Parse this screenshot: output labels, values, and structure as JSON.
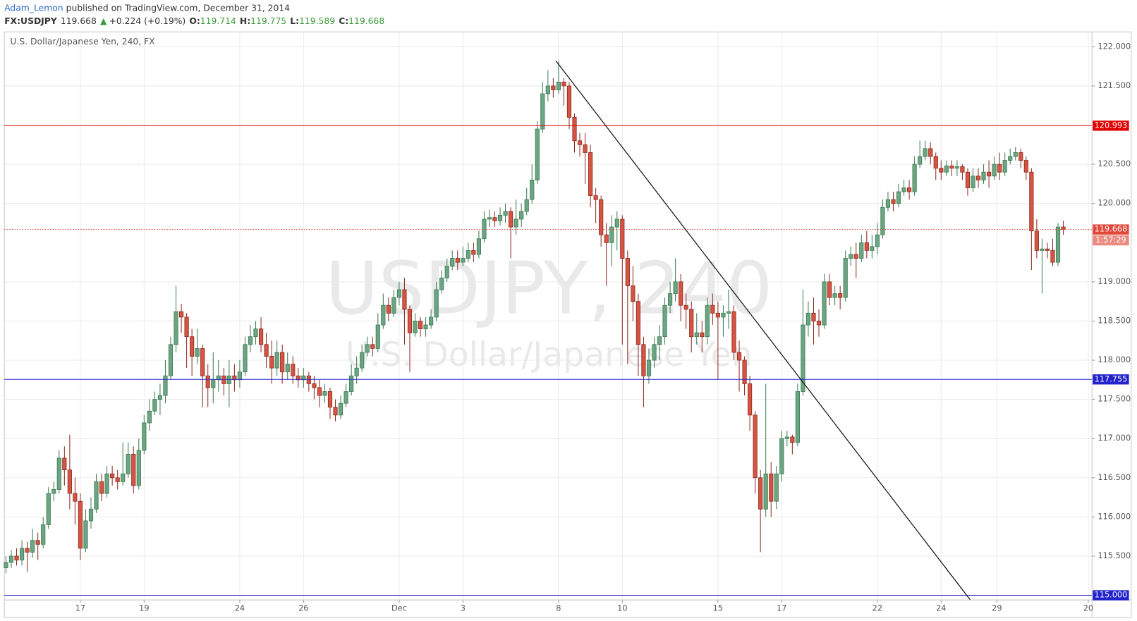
{
  "header": {
    "author": "Adam_Lemon",
    "published": "published on TradingView.com, December 31, 2014",
    "symbol": "FX:USDJPY",
    "last": "119.668",
    "arrow": "▲",
    "change": "+0.224 (+0.19%)",
    "o_label": "O:",
    "o": "119.714",
    "h_label": "H:",
    "h": "119.775",
    "l_label": "L:",
    "l": "119.589",
    "c_label": "C:",
    "c": "119.668"
  },
  "chart_data": {
    "type": "candlestick",
    "title": "U.S. Dollar/Japanese Yen, 240, FX",
    "watermark": [
      "USDJPY, 240",
      "U.S. Dollar/Japanese Yen"
    ],
    "up_color": "#6ba583",
    "down_color": "#d75442",
    "grid": true,
    "open": [
      115.35,
      115.42,
      115.5,
      115.45,
      115.6,
      115.55,
      115.7,
      115.65,
      115.9,
      116.3,
      116.35,
      116.75,
      116.6,
      116.3,
      116.2,
      115.6,
      115.95,
      116.1,
      116.45,
      116.3,
      116.55,
      116.5,
      116.45,
      116.55,
      116.8,
      116.4,
      116.85,
      117.2,
      117.35,
      117.5,
      117.55,
      117.8,
      118.2,
      118.62,
      118.55,
      118.3,
      118.05,
      118.15,
      117.8,
      117.65,
      117.75,
      117.8,
      117.7,
      117.8,
      117.75,
      117.85,
      118.2,
      118.3,
      118.4,
      118.2,
      118.05,
      117.9,
      118.1,
      117.85,
      117.95,
      117.8,
      117.75,
      117.8,
      117.7,
      117.65,
      117.55,
      117.6,
      117.4,
      117.3,
      117.45,
      117.6,
      117.8,
      117.9,
      118.1,
      118.2,
      118.15,
      118.45,
      118.7,
      118.6,
      118.8,
      118.9,
      118.65,
      118.35,
      118.5,
      118.4,
      118.45,
      118.55,
      118.9,
      119.05,
      119.2,
      119.3,
      119.25,
      119.3,
      119.4,
      119.35,
      119.55,
      119.8,
      119.82,
      119.78,
      119.85,
      119.9,
      119.7,
      119.8,
      119.9,
      120.05,
      120.3,
      120.95,
      121.4,
      121.5,
      121.45,
      121.55,
      121.5,
      121.1,
      120.8,
      120.75,
      120.65,
      120.1,
      120.05,
      119.6,
      119.5,
      119.7,
      119.8,
      119.3,
      118.95,
      118.75,
      118.2,
      117.8,
      118.0,
      118.2,
      118.3,
      118.7,
      118.85,
      119.0,
      118.7,
      118.65,
      118.3,
      118.35,
      118.3,
      118.7,
      118.6,
      118.55,
      118.6,
      118.62,
      118.1,
      118.0,
      117.7,
      117.3,
      116.5,
      116.1,
      116.55,
      116.2,
      116.55,
      117.0,
      117.02,
      116.95,
      117.6,
      118.45,
      118.6,
      118.5,
      118.45,
      119.0,
      118.8,
      118.85,
      118.8,
      119.3,
      119.35,
      119.3,
      119.5,
      119.4,
      119.45,
      119.6,
      119.95,
      120.05,
      120.0,
      120.15,
      120.2,
      120.15,
      120.5,
      120.6,
      120.7,
      120.6,
      120.45,
      120.4,
      120.48,
      120.45,
      120.47,
      120.4,
      120.2,
      120.35,
      120.3,
      120.4,
      120.35,
      120.5,
      120.4,
      120.55,
      120.6,
      120.65,
      120.55,
      120.4,
      119.65,
      119.4,
      119.42,
      119.4,
      119.25,
      119.7
    ],
    "high": [
      115.5,
      115.58,
      115.6,
      115.7,
      115.68,
      115.85,
      115.8,
      116.0,
      116.38,
      116.45,
      116.85,
      116.9,
      117.05,
      116.5,
      116.3,
      116.1,
      116.25,
      116.55,
      116.55,
      116.65,
      116.65,
      116.6,
      116.95,
      116.95,
      116.9,
      117.0,
      117.3,
      117.5,
      117.6,
      117.7,
      118.0,
      118.3,
      118.95,
      118.72,
      118.6,
      118.4,
      118.4,
      118.2,
      117.95,
      118.1,
      118.0,
      117.9,
      118.0,
      117.95,
      118.0,
      118.3,
      118.45,
      118.5,
      118.55,
      118.35,
      118.25,
      118.25,
      118.2,
      118.1,
      118.05,
      117.9,
      117.9,
      117.85,
      117.8,
      117.75,
      117.7,
      117.65,
      117.5,
      117.55,
      117.7,
      117.95,
      118.05,
      118.2,
      118.3,
      118.3,
      118.6,
      118.85,
      118.8,
      118.9,
      119.0,
      119.05,
      118.7,
      118.6,
      118.55,
      118.55,
      118.65,
      119.0,
      119.15,
      119.3,
      119.4,
      119.4,
      119.45,
      119.5,
      119.5,
      119.65,
      119.9,
      119.92,
      119.9,
      119.95,
      120.0,
      119.95,
      120.05,
      120.0,
      120.2,
      120.5,
      121.05,
      121.55,
      121.7,
      121.6,
      121.82,
      121.6,
      121.55,
      121.15,
      120.9,
      120.9,
      120.75,
      120.2,
      120.1,
      119.75,
      119.85,
      119.9,
      119.85,
      119.4,
      119.2,
      118.85,
      118.3,
      118.15,
      118.3,
      118.45,
      118.8,
      119.0,
      119.3,
      119.1,
      118.85,
      118.75,
      118.6,
      118.5,
      118.8,
      118.85,
      118.75,
      118.7,
      118.9,
      118.7,
      118.25,
      118.05,
      117.8,
      117.35,
      116.6,
      117.7,
      116.7,
      116.65,
      117.1,
      117.1,
      117.05,
      117.7,
      118.9,
      118.75,
      118.8,
      118.65,
      119.1,
      119.1,
      118.95,
      118.95,
      119.4,
      119.45,
      119.5,
      119.6,
      119.65,
      119.6,
      119.75,
      120.05,
      120.15,
      120.15,
      120.25,
      120.3,
      120.3,
      120.6,
      120.8,
      120.8,
      120.78,
      120.65,
      120.55,
      120.55,
      120.55,
      120.55,
      120.5,
      120.45,
      120.45,
      120.45,
      120.5,
      120.55,
      120.6,
      120.65,
      120.65,
      120.7,
      120.72,
      120.7,
      120.6,
      120.45,
      119.8,
      119.55,
      119.5,
      119.55,
      119.75,
      119.78
    ],
    "low": [
      115.28,
      115.35,
      115.38,
      115.38,
      115.3,
      115.48,
      115.45,
      115.6,
      115.85,
      116.2,
      116.3,
      116.4,
      116.1,
      115.9,
      115.45,
      115.55,
      115.85,
      116.05,
      116.2,
      116.25,
      116.4,
      116.35,
      116.4,
      116.5,
      116.3,
      116.35,
      116.8,
      117.1,
      117.3,
      117.3,
      117.45,
      117.75,
      118.1,
      118.35,
      117.9,
      117.8,
      117.95,
      117.4,
      117.4,
      117.45,
      117.6,
      117.55,
      117.4,
      117.6,
      117.65,
      117.8,
      118.1,
      118.2,
      118.1,
      117.9,
      117.7,
      117.8,
      117.7,
      117.75,
      117.7,
      117.65,
      117.65,
      117.6,
      117.5,
      117.4,
      117.45,
      117.25,
      117.22,
      117.25,
      117.4,
      117.55,
      117.7,
      117.85,
      118.05,
      118.05,
      118.1,
      118.4,
      118.5,
      118.55,
      118.7,
      118.2,
      117.85,
      118.3,
      118.3,
      118.3,
      118.4,
      118.5,
      118.85,
      119.0,
      119.15,
      119.15,
      119.2,
      119.25,
      119.25,
      119.3,
      119.5,
      119.7,
      119.7,
      119.72,
      119.75,
      119.3,
      119.6,
      119.7,
      119.85,
      120.0,
      120.25,
      120.9,
      121.3,
      121.35,
      121.4,
      121.25,
      120.95,
      120.65,
      120.6,
      120.25,
      119.95,
      119.75,
      119.45,
      118.95,
      119.2,
      119.4,
      118.2,
      117.95,
      118.5,
      117.8,
      117.4,
      117.7,
      117.9,
      118.0,
      118.2,
      118.6,
      118.75,
      118.5,
      118.4,
      118.1,
      118.2,
      118.1,
      118.2,
      118.45,
      117.75,
      118.3,
      118.4,
      118.0,
      117.6,
      117.55,
      117.1,
      116.3,
      115.55,
      116.0,
      116.0,
      116.1,
      116.45,
      116.9,
      116.8,
      116.9,
      117.55,
      118.3,
      118.2,
      118.3,
      118.4,
      118.7,
      118.7,
      118.65,
      118.75,
      119.2,
      119.05,
      119.25,
      119.3,
      119.3,
      119.35,
      119.55,
      119.9,
      119.9,
      119.95,
      120.1,
      120.05,
      120.1,
      120.45,
      120.55,
      120.5,
      120.3,
      120.3,
      120.35,
      120.35,
      120.35,
      120.3,
      120.1,
      120.15,
      120.2,
      120.25,
      120.2,
      120.3,
      120.3,
      120.35,
      120.5,
      120.55,
      120.45,
      120.3,
      119.15,
      119.3,
      118.85,
      119.3,
      119.2,
      119.2,
      119.6
    ],
    "close": [
      115.42,
      115.5,
      115.45,
      115.6,
      115.55,
      115.7,
      115.65,
      115.9,
      116.3,
      116.35,
      116.75,
      116.6,
      116.3,
      116.2,
      115.6,
      115.95,
      116.1,
      116.45,
      116.3,
      116.55,
      116.5,
      116.45,
      116.55,
      116.8,
      116.4,
      116.85,
      117.2,
      117.35,
      117.5,
      117.55,
      117.8,
      118.2,
      118.62,
      118.55,
      118.3,
      118.05,
      118.15,
      117.8,
      117.65,
      117.75,
      117.8,
      117.7,
      117.8,
      117.75,
      117.85,
      118.2,
      118.3,
      118.4,
      118.2,
      118.05,
      117.9,
      118.1,
      117.85,
      117.95,
      117.8,
      117.75,
      117.8,
      117.7,
      117.65,
      117.55,
      117.6,
      117.4,
      117.3,
      117.45,
      117.6,
      117.8,
      117.9,
      118.1,
      118.2,
      118.15,
      118.45,
      118.7,
      118.6,
      118.8,
      118.9,
      118.65,
      118.35,
      118.5,
      118.4,
      118.45,
      118.55,
      118.9,
      119.05,
      119.2,
      119.3,
      119.25,
      119.3,
      119.4,
      119.35,
      119.55,
      119.8,
      119.82,
      119.78,
      119.85,
      119.9,
      119.7,
      119.8,
      119.9,
      120.05,
      120.3,
      120.95,
      121.4,
      121.5,
      121.45,
      121.55,
      121.5,
      121.1,
      120.8,
      120.75,
      120.65,
      120.1,
      120.05,
      119.6,
      119.5,
      119.7,
      119.8,
      119.3,
      118.95,
      118.75,
      118.2,
      117.8,
      118.0,
      118.2,
      118.3,
      118.7,
      118.85,
      119.0,
      118.7,
      118.65,
      118.3,
      118.35,
      118.3,
      118.7,
      118.6,
      118.55,
      118.6,
      118.62,
      118.1,
      118.0,
      117.7,
      117.3,
      116.5,
      116.1,
      116.55,
      116.2,
      116.55,
      117.0,
      117.02,
      116.95,
      117.6,
      118.45,
      118.6,
      118.5,
      118.45,
      119.0,
      118.8,
      118.85,
      118.8,
      119.3,
      119.35,
      119.3,
      119.5,
      119.4,
      119.45,
      119.6,
      119.95,
      120.05,
      120.0,
      120.15,
      120.2,
      120.15,
      120.5,
      120.6,
      120.7,
      120.6,
      120.45,
      120.4,
      120.48,
      120.45,
      120.47,
      120.4,
      120.2,
      120.35,
      120.3,
      120.4,
      120.35,
      120.5,
      120.4,
      120.55,
      120.6,
      120.65,
      120.55,
      120.4,
      119.65,
      119.4,
      119.42,
      119.4,
      119.25,
      119.7,
      119.67
    ],
    "xlim": [
      -0.3,
      204.4
    ],
    "xticks": [
      {
        "value": 14,
        "label": "17"
      },
      {
        "value": 26,
        "label": "19"
      },
      {
        "value": 44,
        "label": "24"
      },
      {
        "value": 56,
        "label": "26"
      },
      {
        "value": 74,
        "label": "Dec"
      },
      {
        "value": 86,
        "label": "3"
      },
      {
        "value": 104,
        "label": "8"
      },
      {
        "value": 116,
        "label": "10"
      },
      {
        "value": 134,
        "label": "15"
      },
      {
        "value": 146,
        "label": "17"
      },
      {
        "value": 164,
        "label": "22"
      },
      {
        "value": 176,
        "label": "24"
      },
      {
        "value": 186.5,
        "label": "29"
      },
      {
        "value": 203.7,
        "label": "20"
      }
    ],
    "ylim": [
      114.94,
      122.19
    ],
    "yticks": [
      {
        "value": 115.5,
        "label": "115.500"
      },
      {
        "value": 116,
        "label": "116.000"
      },
      {
        "value": 116.5,
        "label": "116.500"
      },
      {
        "value": 117,
        "label": "117.000"
      },
      {
        "value": 117.5,
        "label": "117.500"
      },
      {
        "value": 118,
        "label": "118.000"
      },
      {
        "value": 118.5,
        "label": "118.500"
      },
      {
        "value": 119,
        "label": "119.000"
      },
      {
        "value": 120,
        "label": "120.000"
      },
      {
        "value": 120.5,
        "label": "120.500"
      },
      {
        "value": 121.5,
        "label": "121.500"
      },
      {
        "value": 122,
        "label": "122.000"
      }
    ],
    "levels": [
      {
        "value": 120.993,
        "label": "120.993",
        "color": "#e00000"
      },
      {
        "value": 117.755,
        "label": "117.755",
        "color": "#2222cc"
      },
      {
        "value": 115,
        "label": "115.000",
        "color": "#2222cc"
      }
    ],
    "last_price": {
      "value": 119.668,
      "label": "119.668",
      "color": "#e0483a",
      "countdown": "1:57:29"
    },
    "trendline": {
      "x": [
        103.5,
        181.5
      ],
      "y": [
        121.82,
        114.94
      ],
      "color": "#111111"
    }
  }
}
